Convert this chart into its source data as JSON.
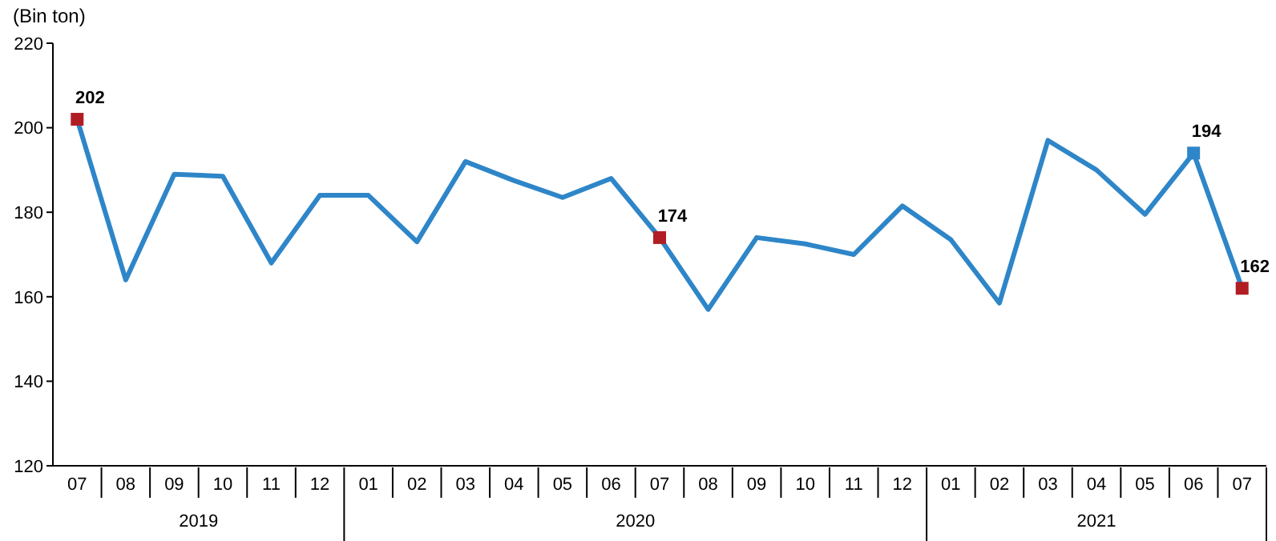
{
  "chart_data": {
    "type": "line",
    "ylabel": "(Bin ton)",
    "categories": [
      "07",
      "08",
      "09",
      "10",
      "11",
      "12",
      "01",
      "02",
      "03",
      "04",
      "05",
      "06",
      "07",
      "08",
      "09",
      "10",
      "11",
      "12",
      "01",
      "02",
      "03",
      "04",
      "05",
      "06",
      "07"
    ],
    "annotations": [
      "2019",
      "2020",
      "2021"
    ],
    "series": [
      {
        "color": "#2e86c8",
        "line_style": "solid",
        "values": [
          202,
          164,
          189,
          188.5,
          168,
          184,
          184,
          173,
          192,
          187.5,
          183.5,
          188,
          174,
          157,
          174,
          172.5,
          170,
          181.5,
          173.5,
          158.5,
          197,
          190,
          179.5,
          194,
          162
        ],
        "value_labels": [
          "202",
          null,
          null,
          null,
          null,
          null,
          null,
          null,
          null,
          null,
          null,
          null,
          "174",
          null,
          null,
          null,
          null,
          null,
          null,
          null,
          null,
          null,
          null,
          "194",
          "162"
        ],
        "colors": [
          "#b01e23",
          null,
          null,
          null,
          null,
          null,
          null,
          null,
          null,
          null,
          null,
          null,
          "#b01e23",
          null,
          null,
          null,
          null,
          null,
          null,
          null,
          null,
          null,
          null,
          "#2e86c8",
          "#b01e23"
        ]
      }
    ],
    "ylim": [
      120,
      220
    ],
    "yticks": [
      120,
      140,
      160,
      180,
      200,
      220
    ],
    "grid": false,
    "legend": false
  }
}
